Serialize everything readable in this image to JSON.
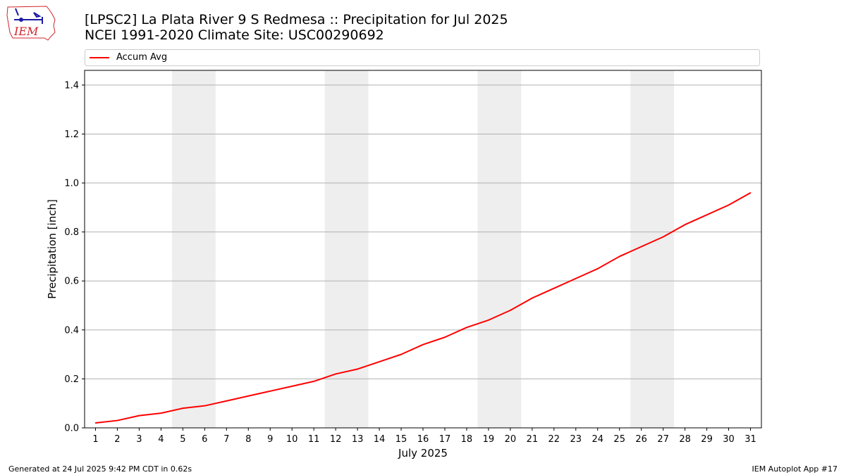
{
  "header": {
    "title_line1": "[LPSC2] La Plata River 9 S Redmesa :: Precipitation for Jul 2025",
    "title_line2": "NCEI 1991-2020 Climate Site: USC00290692",
    "logo_text": "IEM"
  },
  "footer": {
    "left": "Generated at 24 Jul 2025 9:42 PM CDT in 0.62s",
    "right": "IEM Autoplot App #17"
  },
  "colors": {
    "line": "#ff0000",
    "weekend_band": "#eeeeee",
    "grid": "#b0b0b0",
    "logo": "#d0252c"
  },
  "chart_data": {
    "type": "line",
    "xlabel": "July 2025",
    "ylabel": "Precipitation [inch]",
    "xlim": [
      0.5,
      31.5
    ],
    "ylim": [
      0,
      1.46
    ],
    "yticks": [
      0.0,
      0.2,
      0.4,
      0.6,
      0.8,
      1.0,
      1.2,
      1.4
    ],
    "ytick_labels": [
      "0.0",
      "0.2",
      "0.4",
      "0.6",
      "0.8",
      "1.0",
      "1.2",
      "1.4"
    ],
    "x": [
      1,
      2,
      3,
      4,
      5,
      6,
      7,
      8,
      9,
      10,
      11,
      12,
      13,
      14,
      15,
      16,
      17,
      18,
      19,
      20,
      21,
      22,
      23,
      24,
      25,
      26,
      27,
      28,
      29,
      30,
      31
    ],
    "x_labels": [
      "1",
      "2",
      "3",
      "4",
      "5",
      "6",
      "7",
      "8",
      "9",
      "10",
      "11",
      "12",
      "13",
      "14",
      "15",
      "16",
      "17",
      "18",
      "19",
      "20",
      "21",
      "22",
      "23",
      "24",
      "25",
      "26",
      "27",
      "28",
      "29",
      "30",
      "31"
    ],
    "series": [
      {
        "name": "Accum Avg",
        "values": [
          0.02,
          0.03,
          0.05,
          0.06,
          0.08,
          0.09,
          0.11,
          0.13,
          0.15,
          0.17,
          0.19,
          0.22,
          0.24,
          0.27,
          0.3,
          0.34,
          0.37,
          0.41,
          0.44,
          0.48,
          0.53,
          0.57,
          0.61,
          0.65,
          0.7,
          0.74,
          0.78,
          0.83,
          0.87,
          0.91,
          0.96
        ]
      }
    ],
    "weekend_bands": [
      [
        4.5,
        6.5
      ],
      [
        11.5,
        13.5
      ],
      [
        18.5,
        20.5
      ],
      [
        25.5,
        27.5
      ]
    ],
    "grid": "y",
    "legend_position": "top"
  }
}
